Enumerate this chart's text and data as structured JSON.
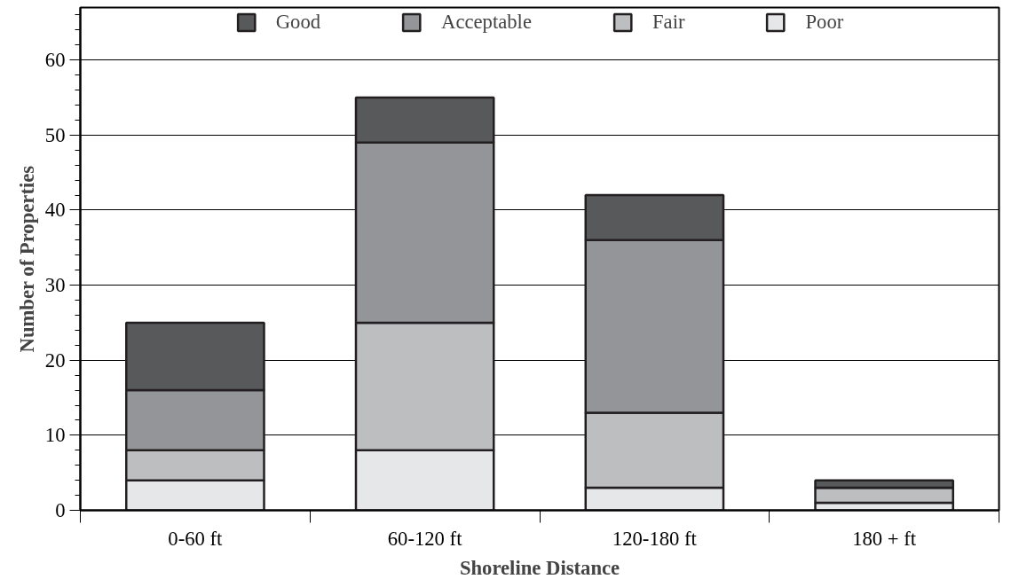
{
  "chart_data": {
    "type": "bar",
    "stacked": true,
    "xlabel": "Shoreline Distance",
    "ylabel": "Number of Properties",
    "categories": [
      "0-60 ft",
      "60-120 ft",
      "120-180 ft",
      "180 + ft"
    ],
    "series": [
      {
        "name": "Poor",
        "color": "#e6e7e8",
        "values": [
          4,
          8,
          3,
          1
        ]
      },
      {
        "name": "Fair",
        "color": "#bcbec0",
        "values": [
          4,
          17,
          10,
          2
        ]
      },
      {
        "name": "Acceptable",
        "color": "#939598",
        "values": [
          8,
          24,
          23,
          0
        ]
      },
      {
        "name": "Good",
        "color": "#58595b",
        "values": [
          9,
          6,
          6,
          1
        ]
      }
    ],
    "ylim": [
      0,
      67
    ],
    "yticks": [
      0,
      10,
      20,
      30,
      40,
      50,
      60
    ],
    "grid": "y",
    "legend": "top"
  }
}
